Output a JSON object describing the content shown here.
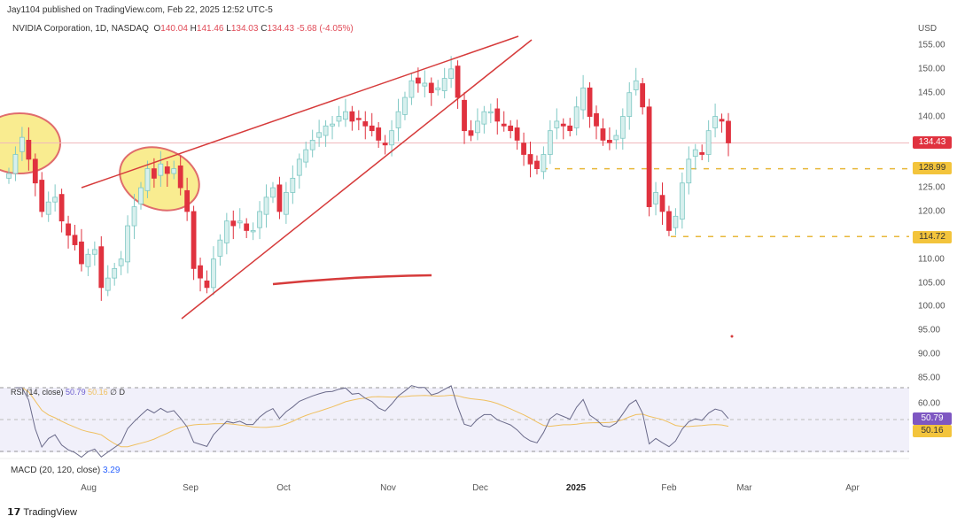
{
  "header": {
    "publisher": "Jay1104 published on TradingView.com, Feb 22, 2025 12:52 UTC-5",
    "symbol": "NVIDIA Corporation, 1D, NASDAQ",
    "open_label": "O",
    "open": "140.04",
    "high_label": "H",
    "high": "141.46",
    "low_label": "L",
    "low": "134.03",
    "close_label": "C",
    "close": "134.43",
    "change": "-5.68 (-4.05%)"
  },
  "price_axis": {
    "currency": "USD",
    "ticks": [
      "155.00",
      "150.00",
      "145.00",
      "140.00",
      "125.00",
      "120.00",
      "110.00",
      "105.00",
      "100.00",
      "95.00",
      "90.00",
      "85.00"
    ],
    "last_price_badge": "134.43",
    "level_badges": [
      "128.99",
      "114.72"
    ]
  },
  "rsi": {
    "label": "RSI (14, close)",
    "value": "50.79",
    "ma_value": "50.16",
    "extra": "∅ D",
    "axis_tick": "60.00"
  },
  "macd": {
    "label": "MACD (20, 120, close)",
    "value": "3.29"
  },
  "time_axis": [
    "Aug",
    "Sep",
    "Oct",
    "Nov",
    "Dec",
    "2025",
    "Feb",
    "Mar",
    "Apr"
  ],
  "branding": "TradingView",
  "colors": {
    "up": "#7fc8c4",
    "down": "#e0323f",
    "drawing": "#d63b3b",
    "highlight": "#f7e66b",
    "level": "#e8b83a",
    "rsi": "#6a6a8a",
    "rsi_ma": "#f0c060"
  },
  "chart_data": {
    "type": "candlestick",
    "title": "NVIDIA Corporation, 1D, NASDAQ",
    "ylabel": "USD",
    "ylim": [
      85,
      155
    ],
    "levels": [
      134.43,
      128.99,
      114.72
    ],
    "x_range": [
      "Jul 2024",
      "Apr 2025"
    ],
    "closes": [
      128,
      132,
      135.6,
      131,
      126,
      120,
      122,
      123,
      118,
      115,
      113,
      109,
      111,
      112,
      104,
      106,
      108,
      110,
      117,
      121,
      125,
      129,
      127,
      130,
      128,
      129,
      125,
      120,
      108,
      106,
      104,
      110,
      114,
      118,
      117,
      118,
      116,
      116,
      120,
      123,
      125,
      120,
      124,
      127,
      131,
      133,
      135,
      136.6,
      138,
      138.4,
      140,
      141,
      139,
      139.5,
      138,
      137,
      135,
      134,
      137,
      141,
      144,
      147.5,
      147,
      147,
      145,
      146,
      148,
      150,
      144,
      137,
      136,
      139,
      141,
      141,
      139,
      138,
      137,
      135,
      132,
      130,
      129,
      132,
      137,
      139,
      138,
      137,
      142,
      146,
      140,
      138,
      135,
      134.5,
      136,
      140,
      145,
      147.5,
      142,
      121,
      124,
      120,
      116,
      119,
      126,
      131,
      133,
      132,
      137,
      140,
      139,
      134.43
    ]
  }
}
